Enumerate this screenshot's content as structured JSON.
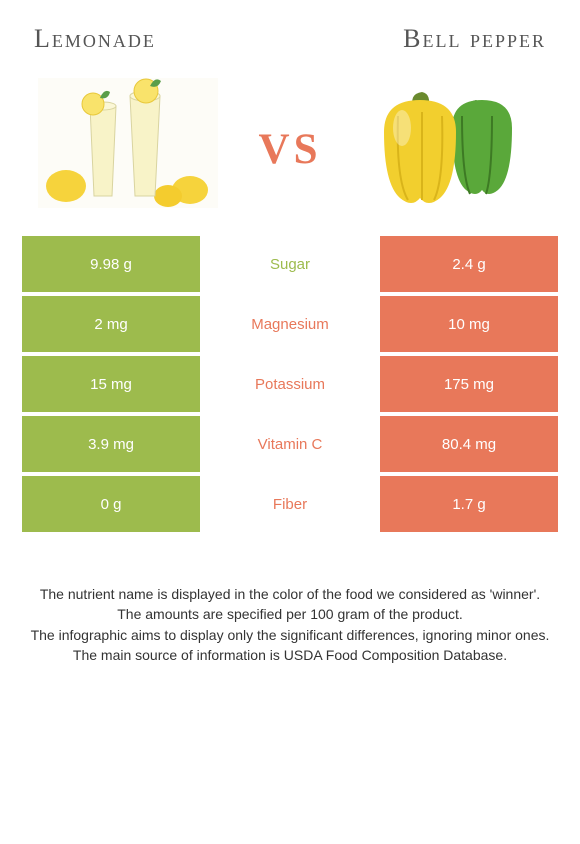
{
  "titles": {
    "left": "Lemonade",
    "right": "Bell pepper"
  },
  "vs": "vs",
  "colors": {
    "left_bg": "#9dbb4d",
    "right_bg": "#e8785a",
    "left_text": "#9dbb4d",
    "right_text": "#e8785a",
    "white": "#ffffff"
  },
  "rows": [
    {
      "left": "9.98 g",
      "label": "Sugar",
      "right": "2.4 g",
      "winner": "left"
    },
    {
      "left": "2 mg",
      "label": "Magnesium",
      "right": "10 mg",
      "winner": "right"
    },
    {
      "left": "15 mg",
      "label": "Potassium",
      "right": "175 mg",
      "winner": "right"
    },
    {
      "left": "3.9 mg",
      "label": "Vitamin C",
      "right": "80.4 mg",
      "winner": "right"
    },
    {
      "left": "0 g",
      "label": "Fiber",
      "right": "1.7 g",
      "winner": "right"
    }
  ],
  "footnotes": [
    "The nutrient name is displayed in the color of the food we considered as 'winner'.",
    "The amounts are specified per 100 gram of the product.",
    "The infographic aims to display only the significant differences, ignoring minor ones.",
    "The main source of information is USDA Food Composition Database."
  ]
}
